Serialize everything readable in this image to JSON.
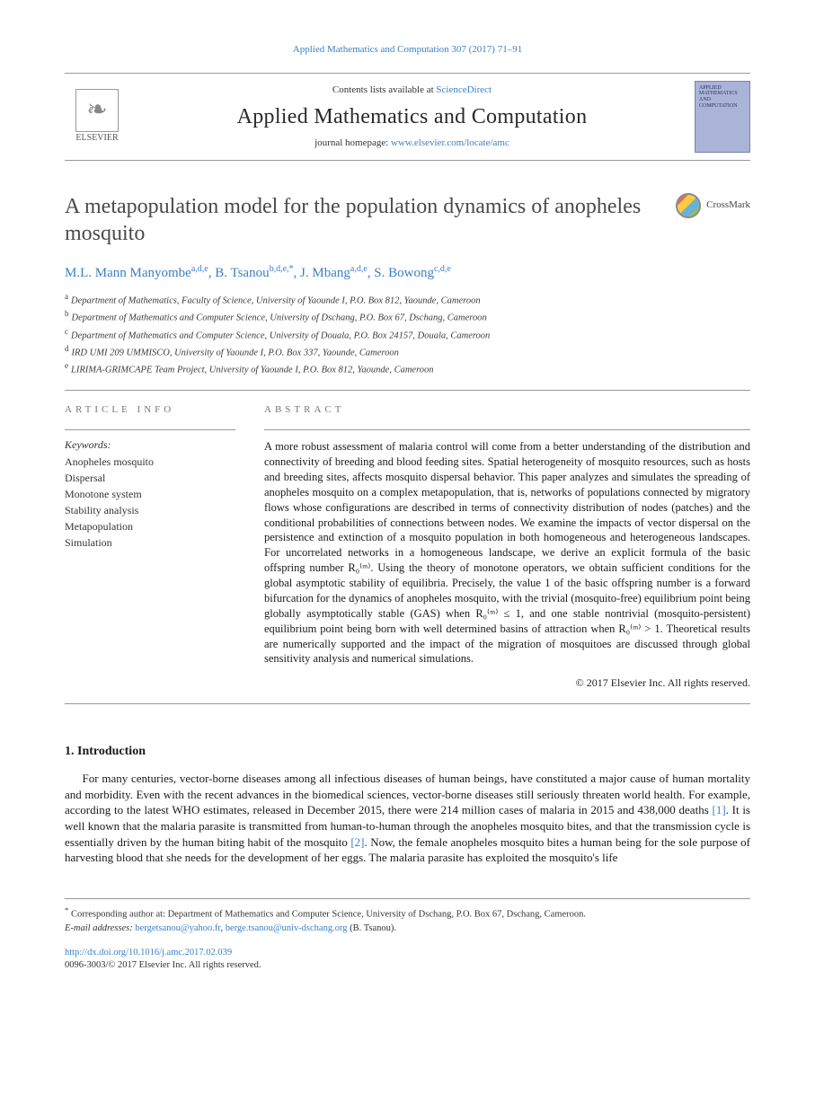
{
  "running_head": "Applied Mathematics and Computation 307 (2017) 71–91",
  "header": {
    "contents_prefix": "Contents lists available at ",
    "contents_link": "ScienceDirect",
    "journal_title": "Applied Mathematics and Computation",
    "homepage_prefix": "journal homepage: ",
    "homepage_url": "www.elsevier.com/locate/amc",
    "elsevier_label": "ELSEVIER",
    "cover_text": "APPLIED MATHEMATICS AND COMPUTATION"
  },
  "article": {
    "title": "A metapopulation model for the population dynamics of anopheles mosquito",
    "crossmark_label": "CrossMark"
  },
  "authors": [
    {
      "name": "M.L. Mann Manyombe",
      "marks": "a,d,e"
    },
    {
      "name": "B. Tsanou",
      "marks": "b,d,e,*"
    },
    {
      "name": "J. Mbang",
      "marks": "a,d,e"
    },
    {
      "name": "S. Bowong",
      "marks": "c,d,e"
    }
  ],
  "affiliations": [
    {
      "mark": "a",
      "text": "Department of Mathematics, Faculty of Science, University of Yaounde I, P.O. Box 812, Yaounde, Cameroon"
    },
    {
      "mark": "b",
      "text": "Department of Mathematics and Computer Science, University of Dschang, P.O. Box 67, Dschang, Cameroon"
    },
    {
      "mark": "c",
      "text": "Department of Mathematics and Computer Science, University of Douala, P.O. Box 24157, Douala, Cameroon"
    },
    {
      "mark": "d",
      "text": "IRD UMI 209 UMMISCO, University of Yaounde I, P.O. Box 337, Yaounde, Cameroon"
    },
    {
      "mark": "e",
      "text": "LIRIMA-GRIMCAPE Team Project, University of Yaounde I, P.O. Box 812, Yaounde, Cameroon"
    }
  ],
  "info_label": "ARTICLE INFO",
  "abstract_label": "ABSTRACT",
  "keywords_head": "Keywords:",
  "keywords": [
    "Anopheles mosquito",
    "Dispersal",
    "Monotone system",
    "Stability analysis",
    "Metapopulation",
    "Simulation"
  ],
  "abstract_text": "A more robust assessment of malaria control will come from a better understanding of the distribution and connectivity of breeding and blood feeding sites. Spatial heterogeneity of mosquito resources, such as hosts and breeding sites, affects mosquito dispersal behavior. This paper analyzes and simulates the spreading of anopheles mosquito on a complex metapopulation, that is, networks of populations connected by migratory flows whose configurations are described in terms of connectivity distribution of nodes (patches) and the conditional probabilities of connections between nodes. We examine the impacts of vector dispersal on the persistence and extinction of a mosquito population in both homogeneous and heterogeneous landscapes. For uncorrelated networks in a homogeneous landscape, we derive an explicit formula of the basic offspring number R₀⁽ᵐ⁾. Using the theory of monotone operators, we obtain sufficient conditions for the global asymptotic stability of equilibria. Precisely, the value 1 of the basic offspring number is a forward bifurcation for the dynamics of anopheles mosquito, with the trivial (mosquito-free) equilibrium point being globally asymptotically stable (GAS) when R₀⁽ᵐ⁾ ≤ 1, and one stable nontrivial (mosquito-persistent) equilibrium point being born with well determined basins of attraction when R₀⁽ᵐ⁾ > 1. Theoretical results are numerically supported and the impact of the migration of mosquitoes are discussed through global sensitivity analysis and numerical simulations.",
  "copyright": "© 2017 Elsevier Inc. All rights reserved.",
  "section1_head": "1. Introduction",
  "intro_paragraph": "For many centuries, vector-borne diseases among all infectious diseases of human beings, have constituted a major cause of human mortality and morbidity. Even with the recent advances in the biomedical sciences, vector-borne diseases still seriously threaten world health. For example, according to the latest WHO estimates, released in December 2015, there were 214 million cases of malaria in 2015 and 438,000 deaths [1]. It is well known that the malaria parasite is transmitted from human-to-human through the anopheles mosquito bites, and that the transmission cycle is essentially driven by the human biting habit of the mosquito [2]. Now, the female anopheles mosquito bites a human being for the sole purpose of harvesting blood that she needs for the development of her eggs. The malaria parasite has exploited the mosquito's life",
  "footnote_corresponding": "Corresponding author at: Department of Mathematics and Computer Science, University of Dschang, P.O. Box 67, Dschang, Cameroon.",
  "footnote_email_label": "E-mail addresses:",
  "footnote_emails": [
    {
      "addr": "bergetsanou@yahoo.fr"
    },
    {
      "addr": "berge.tsanou@univ-dschang.org"
    }
  ],
  "footnote_email_of": "(B. Tsanou).",
  "doi_url": "http://dx.doi.org/10.1016/j.amc.2017.02.039",
  "issn_copyright": "0096-3003/© 2017 Elsevier Inc. All rights reserved.",
  "colors": {
    "link": "#3b7fc4",
    "text": "#1a1a1a",
    "rule": "#999999"
  }
}
